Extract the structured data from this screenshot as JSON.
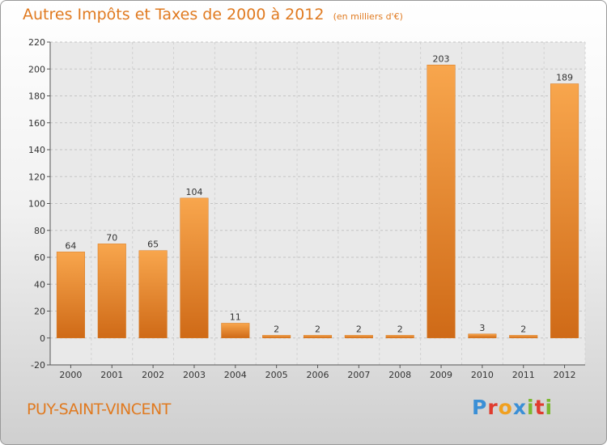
{
  "chart_data": {
    "type": "bar",
    "title": "Autres Impôts et Taxes de 2000 à 2012",
    "subtitle": "(en milliers d'€)",
    "categories": [
      "2000",
      "2001",
      "2002",
      "2003",
      "2004",
      "2005",
      "2006",
      "2007",
      "2008",
      "2009",
      "2010",
      "2011",
      "2012"
    ],
    "values": [
      64,
      70,
      65,
      104,
      11,
      2,
      2,
      2,
      2,
      203,
      3,
      2,
      189
    ],
    "ylim": [
      -20,
      220
    ],
    "yticks": [
      -20,
      0,
      20,
      40,
      60,
      80,
      100,
      120,
      140,
      160,
      180,
      200,
      220
    ],
    "grid": true,
    "bar_color": "#f39c3f"
  },
  "footer": {
    "commune": "PUY-SAINT-VINCENT",
    "logo_letters": [
      "P",
      "r",
      "o",
      "x",
      "i",
      "t",
      "i"
    ],
    "logo_colors": [
      "#3a8fd6",
      "#e03c2e",
      "#f0a020",
      "#3a8fd6",
      "#7cb830",
      "#e03c2e",
      "#7cb830"
    ]
  }
}
